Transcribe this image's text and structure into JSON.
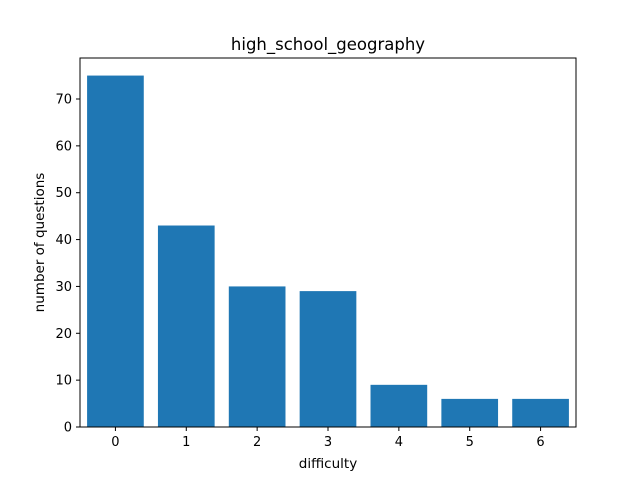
{
  "chart_data": {
    "type": "bar",
    "title": "high_school_geography",
    "xlabel": "difficulty",
    "ylabel": "number of questions",
    "categories": [
      "0",
      "1",
      "2",
      "3",
      "4",
      "5",
      "6"
    ],
    "values": [
      75,
      43,
      30,
      29,
      9,
      6,
      6
    ],
    "yticks": [
      "0",
      "10",
      "20",
      "30",
      "40",
      "50",
      "60",
      "70"
    ],
    "ylim": [
      0,
      78.75
    ],
    "xlim": [
      -0.5,
      6.5
    ],
    "bar_width": 0.8,
    "bar_color": "#1f77b4",
    "grid": false,
    "legend": "none"
  }
}
